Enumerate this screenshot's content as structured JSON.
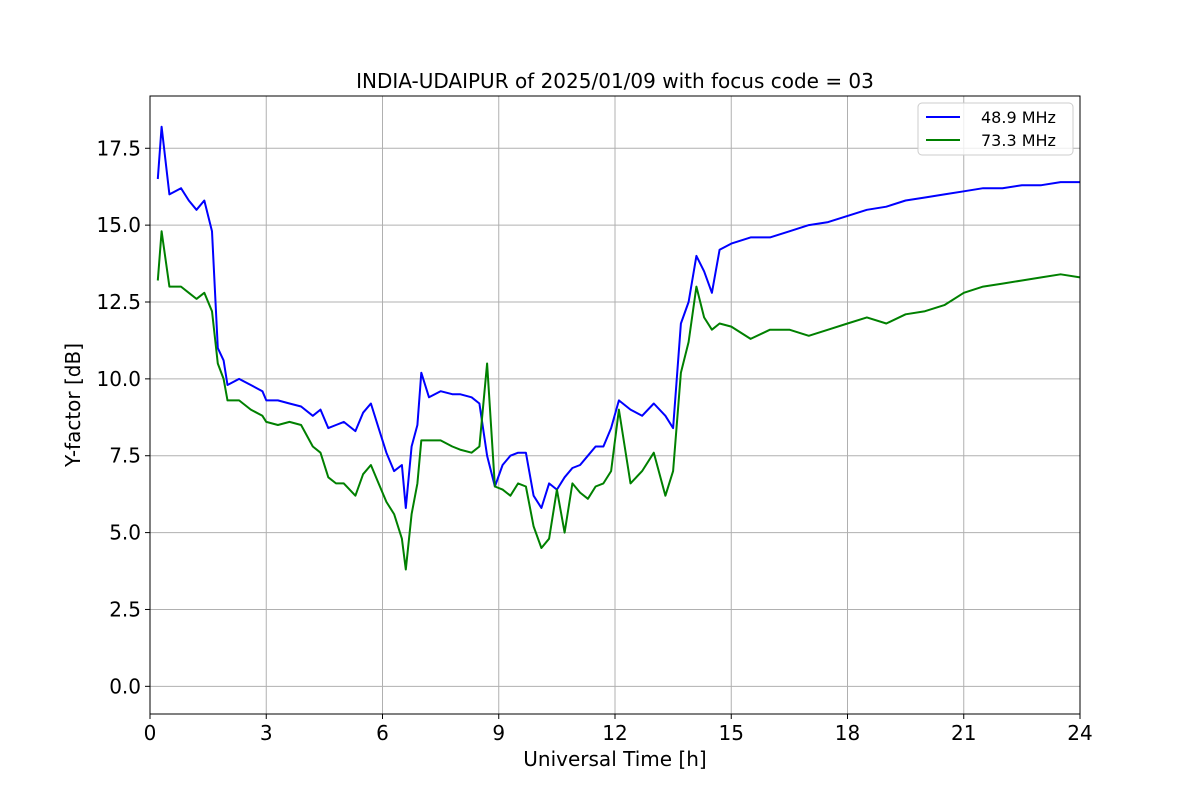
{
  "chart_data": {
    "type": "line",
    "title": "INDIA-UDAIPUR of 2025/01/09 with focus code = 03",
    "xlabel": "Universal Time [h]",
    "ylabel": "Y-factor [dB]",
    "xlim": [
      0,
      24
    ],
    "ylim": [
      -0.9,
      19.2
    ],
    "xticks": [
      0,
      3,
      6,
      9,
      12,
      15,
      18,
      21,
      24
    ],
    "xtick_labels": [
      "0",
      "3",
      "6",
      "9",
      "12",
      "15",
      "18",
      "21",
      "24"
    ],
    "yticks": [
      0,
      2.5,
      5,
      7.5,
      10,
      12.5,
      15,
      17.5
    ],
    "ytick_labels": [
      "0.0",
      "2.5",
      "5.0",
      "7.5",
      "10.0",
      "12.5",
      "15.0",
      "17.5"
    ],
    "grid": true,
    "legend_position": "top-right",
    "series": [
      {
        "name": "48.9 MHz",
        "color": "#0000ff",
        "points": [
          [
            0.2,
            16.5
          ],
          [
            0.3,
            18.2
          ],
          [
            0.5,
            16.0
          ],
          [
            0.8,
            16.2
          ],
          [
            1.0,
            15.8
          ],
          [
            1.2,
            15.5
          ],
          [
            1.4,
            15.8
          ],
          [
            1.6,
            14.8
          ],
          [
            1.75,
            11.0
          ],
          [
            1.9,
            10.6
          ],
          [
            2.0,
            9.8
          ],
          [
            2.3,
            10.0
          ],
          [
            2.6,
            9.8
          ],
          [
            2.9,
            9.6
          ],
          [
            3.0,
            9.3
          ],
          [
            3.3,
            9.3
          ],
          [
            3.6,
            9.2
          ],
          [
            3.9,
            9.1
          ],
          [
            4.2,
            8.8
          ],
          [
            4.4,
            9.0
          ],
          [
            4.6,
            8.4
          ],
          [
            4.8,
            8.5
          ],
          [
            5.0,
            8.6
          ],
          [
            5.3,
            8.3
          ],
          [
            5.5,
            8.9
          ],
          [
            5.7,
            9.2
          ],
          [
            5.9,
            8.4
          ],
          [
            6.1,
            7.6
          ],
          [
            6.3,
            7.0
          ],
          [
            6.5,
            7.2
          ],
          [
            6.6,
            5.8
          ],
          [
            6.75,
            7.8
          ],
          [
            6.9,
            8.5
          ],
          [
            7.0,
            10.2
          ],
          [
            7.2,
            9.4
          ],
          [
            7.5,
            9.6
          ],
          [
            7.8,
            9.5
          ],
          [
            8.0,
            9.5
          ],
          [
            8.3,
            9.4
          ],
          [
            8.5,
            9.2
          ],
          [
            8.7,
            7.5
          ],
          [
            8.9,
            6.5
          ],
          [
            9.1,
            7.2
          ],
          [
            9.3,
            7.5
          ],
          [
            9.5,
            7.6
          ],
          [
            9.7,
            7.6
          ],
          [
            9.9,
            6.2
          ],
          [
            10.1,
            5.8
          ],
          [
            10.3,
            6.6
          ],
          [
            10.5,
            6.4
          ],
          [
            10.7,
            6.8
          ],
          [
            10.9,
            7.1
          ],
          [
            11.1,
            7.2
          ],
          [
            11.3,
            7.5
          ],
          [
            11.5,
            7.8
          ],
          [
            11.7,
            7.8
          ],
          [
            11.9,
            8.4
          ],
          [
            12.1,
            9.3
          ],
          [
            12.4,
            9.0
          ],
          [
            12.7,
            8.8
          ],
          [
            13.0,
            9.2
          ],
          [
            13.3,
            8.8
          ],
          [
            13.5,
            8.4
          ],
          [
            13.7,
            11.8
          ],
          [
            13.9,
            12.5
          ],
          [
            14.1,
            14.0
          ],
          [
            14.3,
            13.5
          ],
          [
            14.5,
            12.8
          ],
          [
            14.7,
            14.2
          ],
          [
            15.0,
            14.4
          ],
          [
            15.5,
            14.6
          ],
          [
            16.0,
            14.6
          ],
          [
            16.5,
            14.8
          ],
          [
            17.0,
            15.0
          ],
          [
            17.5,
            15.1
          ],
          [
            18.0,
            15.3
          ],
          [
            18.5,
            15.5
          ],
          [
            19.0,
            15.6
          ],
          [
            19.5,
            15.8
          ],
          [
            20.0,
            15.9
          ],
          [
            20.5,
            16.0
          ],
          [
            21.0,
            16.1
          ],
          [
            21.5,
            16.2
          ],
          [
            22.0,
            16.2
          ],
          [
            22.5,
            16.3
          ],
          [
            23.0,
            16.3
          ],
          [
            23.5,
            16.4
          ],
          [
            24.0,
            16.4
          ]
        ]
      },
      {
        "name": "73.3 MHz",
        "color": "#008000",
        "points": [
          [
            0.2,
            13.2
          ],
          [
            0.3,
            14.8
          ],
          [
            0.5,
            13.0
          ],
          [
            0.8,
            13.0
          ],
          [
            1.0,
            12.8
          ],
          [
            1.2,
            12.6
          ],
          [
            1.4,
            12.8
          ],
          [
            1.6,
            12.2
          ],
          [
            1.75,
            10.5
          ],
          [
            1.9,
            10.0
          ],
          [
            2.0,
            9.3
          ],
          [
            2.3,
            9.3
          ],
          [
            2.6,
            9.0
          ],
          [
            2.9,
            8.8
          ],
          [
            3.0,
            8.6
          ],
          [
            3.3,
            8.5
          ],
          [
            3.6,
            8.6
          ],
          [
            3.9,
            8.5
          ],
          [
            4.2,
            7.8
          ],
          [
            4.4,
            7.6
          ],
          [
            4.6,
            6.8
          ],
          [
            4.8,
            6.6
          ],
          [
            5.0,
            6.6
          ],
          [
            5.3,
            6.2
          ],
          [
            5.5,
            6.9
          ],
          [
            5.7,
            7.2
          ],
          [
            5.9,
            6.6
          ],
          [
            6.1,
            6.0
          ],
          [
            6.3,
            5.6
          ],
          [
            6.5,
            4.8
          ],
          [
            6.6,
            3.8
          ],
          [
            6.75,
            5.6
          ],
          [
            6.9,
            6.6
          ],
          [
            7.0,
            8.0
          ],
          [
            7.2,
            8.0
          ],
          [
            7.5,
            8.0
          ],
          [
            7.8,
            7.8
          ],
          [
            8.0,
            7.7
          ],
          [
            8.3,
            7.6
          ],
          [
            8.5,
            7.8
          ],
          [
            8.7,
            10.5
          ],
          [
            8.9,
            6.5
          ],
          [
            9.1,
            6.4
          ],
          [
            9.3,
            6.2
          ],
          [
            9.5,
            6.6
          ],
          [
            9.7,
            6.5
          ],
          [
            9.9,
            5.2
          ],
          [
            10.1,
            4.5
          ],
          [
            10.3,
            4.8
          ],
          [
            10.5,
            6.4
          ],
          [
            10.7,
            5.0
          ],
          [
            10.9,
            6.6
          ],
          [
            11.1,
            6.3
          ],
          [
            11.3,
            6.1
          ],
          [
            11.5,
            6.5
          ],
          [
            11.7,
            6.6
          ],
          [
            11.9,
            7.0
          ],
          [
            12.1,
            9.0
          ],
          [
            12.4,
            6.6
          ],
          [
            12.7,
            7.0
          ],
          [
            13.0,
            7.6
          ],
          [
            13.3,
            6.2
          ],
          [
            13.5,
            7.0
          ],
          [
            13.7,
            10.2
          ],
          [
            13.9,
            11.2
          ],
          [
            14.1,
            13.0
          ],
          [
            14.3,
            12.0
          ],
          [
            14.5,
            11.6
          ],
          [
            14.7,
            11.8
          ],
          [
            15.0,
            11.7
          ],
          [
            15.5,
            11.3
          ],
          [
            16.0,
            11.6
          ],
          [
            16.5,
            11.6
          ],
          [
            17.0,
            11.4
          ],
          [
            17.5,
            11.6
          ],
          [
            18.0,
            11.8
          ],
          [
            18.5,
            12.0
          ],
          [
            19.0,
            11.8
          ],
          [
            19.5,
            12.1
          ],
          [
            20.0,
            12.2
          ],
          [
            20.5,
            12.4
          ],
          [
            21.0,
            12.8
          ],
          [
            21.5,
            13.0
          ],
          [
            22.0,
            13.1
          ],
          [
            22.5,
            13.2
          ],
          [
            23.0,
            13.3
          ],
          [
            23.5,
            13.4
          ],
          [
            24.0,
            13.3
          ]
        ]
      }
    ]
  }
}
